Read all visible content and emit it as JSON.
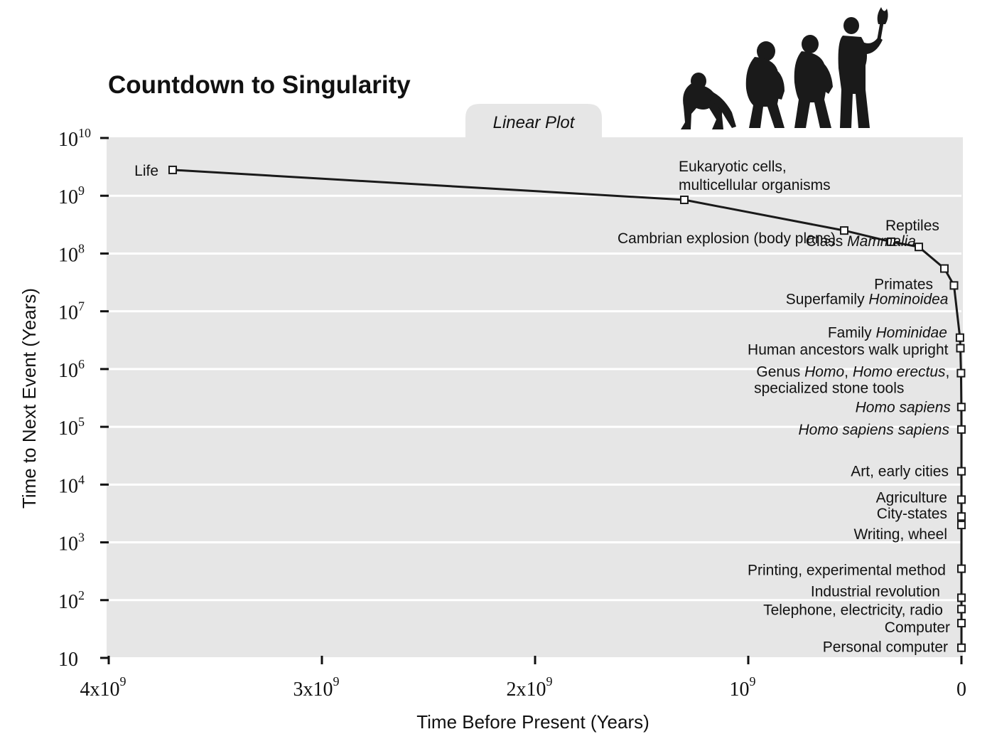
{
  "chart_data": {
    "type": "line",
    "title": "Countdown to Singularity",
    "subtitle": "Linear Plot",
    "xlabel": "Time Before Present (Years)",
    "ylabel": "Time to Next Event (Years)",
    "x_scale": "linear",
    "y_scale": "log",
    "xlim": [
      4000000000,
      0
    ],
    "ylim": [
      10,
      10000000000
    ],
    "grid": true,
    "x_ticks": [
      {
        "value": 4000000000,
        "base": "4x10",
        "exp": "9"
      },
      {
        "value": 3000000000,
        "base": "3x10",
        "exp": "9"
      },
      {
        "value": 2000000000,
        "base": "2x10",
        "exp": "9"
      },
      {
        "value": 1000000000,
        "base": "10",
        "exp": "9"
      },
      {
        "value": 0,
        "base": "0",
        "exp": ""
      }
    ],
    "y_ticks": [
      {
        "value": 10000000000,
        "base": "10",
        "exp": "10"
      },
      {
        "value": 1000000000,
        "base": "10",
        "exp": "9"
      },
      {
        "value": 100000000,
        "base": "10",
        "exp": "8"
      },
      {
        "value": 10000000,
        "base": "10",
        "exp": "7"
      },
      {
        "value": 1000000,
        "base": "10",
        "exp": "6"
      },
      {
        "value": 100000,
        "base": "10",
        "exp": "5"
      },
      {
        "value": 10000,
        "base": "10",
        "exp": "4"
      },
      {
        "value": 1000,
        "base": "10",
        "exp": "3"
      },
      {
        "value": 100,
        "base": "10",
        "exp": "2"
      },
      {
        "value": 10,
        "base": "10",
        "exp": ""
      }
    ],
    "events": [
      {
        "name": "Life",
        "x": 3700000000,
        "y": 2800000000
      },
      {
        "name": "Eukaryotic cells, multicellular organisms",
        "x": 1300000000,
        "y": 850000000
      },
      {
        "name": "Cambrian explosion (body plans)",
        "x": 550000000,
        "y": 250000000
      },
      {
        "name": "Reptiles",
        "x": 330000000,
        "y": 160000000
      },
      {
        "name": "Class Mammalia",
        "x": 200000000,
        "y": 130000000
      },
      {
        "name": "Primates",
        "x": 80000000,
        "y": 55000000
      },
      {
        "name": "Superfamily Hominoidea",
        "x": 35000000,
        "y": 28000000
      },
      {
        "name": "Family Hominidae",
        "x": 7000000,
        "y": 3500000
      },
      {
        "name": "Human ancestors walk upright",
        "x": 5000000,
        "y": 2300000
      },
      {
        "name": "Genus Homo, Homo erectus, specialized stone tools",
        "x": 2000000,
        "y": 850000
      },
      {
        "name": "Homo sapiens",
        "x": 400000,
        "y": 220000
      },
      {
        "name": "Homo sapiens sapiens",
        "x": 150000,
        "y": 90000
      },
      {
        "name": "Art, early cities",
        "x": 40000,
        "y": 17000
      },
      {
        "name": "Agriculture",
        "x": 10000,
        "y": 5500
      },
      {
        "name": "City-states",
        "x": 6000,
        "y": 2800
      },
      {
        "name": "Writing, wheel",
        "x": 4500,
        "y": 2000
      },
      {
        "name": "Printing, experimental method",
        "x": 550,
        "y": 350
      },
      {
        "name": "Industrial revolution",
        "x": 220,
        "y": 110
      },
      {
        "name": "Telephone, electricity, radio",
        "x": 120,
        "y": 70
      },
      {
        "name": "Computer",
        "x": 60,
        "y": 40
      },
      {
        "name": "Personal computer",
        "x": 30,
        "y": 15
      }
    ],
    "labels": [
      {
        "text": "Life",
        "event": 0
      },
      {
        "text": "Eukaryotic cells,",
        "event": 1
      },
      {
        "text": "multicellular organisms",
        "event": 1
      },
      {
        "text": "Cambrian explosion (body plans)",
        "event": 2
      },
      {
        "text": "Reptiles",
        "event": 3
      },
      {
        "parts": [
          {
            "t": "Class ",
            "i": false
          },
          {
            "t": "Mammalia",
            "i": true
          }
        ],
        "event": 4
      },
      {
        "text": "Primates",
        "event": 5
      },
      {
        "parts": [
          {
            "t": "Superfamily ",
            "i": false
          },
          {
            "t": "Hominoidea",
            "i": true
          }
        ],
        "event": 6
      },
      {
        "parts": [
          {
            "t": "Family ",
            "i": false
          },
          {
            "t": "Hominidae",
            "i": true
          }
        ],
        "event": 7
      },
      {
        "text": "Human ancestors walk upright",
        "event": 8
      },
      {
        "parts": [
          {
            "t": "Genus ",
            "i": false
          },
          {
            "t": "Homo",
            "i": true
          },
          {
            "t": ", ",
            "i": false
          },
          {
            "t": "Homo erectus",
            "i": true
          },
          {
            "t": ",",
            "i": false
          }
        ],
        "event": 9
      },
      {
        "text": "specialized stone tools",
        "event": 9
      },
      {
        "parts": [
          {
            "t": "Homo sapiens",
            "i": true
          }
        ],
        "event": 10
      },
      {
        "parts": [
          {
            "t": "Homo sapiens sapiens",
            "i": true
          }
        ],
        "event": 11
      },
      {
        "text": "Art, early cities",
        "event": 12
      },
      {
        "text": "Agriculture",
        "event": 13
      },
      {
        "text": "City-states",
        "event": 14
      },
      {
        "text": "Writing, wheel",
        "event": 15
      },
      {
        "text": "Printing, experimental method",
        "event": 16
      },
      {
        "text": "Industrial revolution",
        "event": 17
      },
      {
        "text": "Telephone, electricity, radio",
        "event": 18
      },
      {
        "text": "Computer",
        "event": 19
      },
      {
        "text": "Personal computer",
        "event": 20
      }
    ]
  },
  "illustration": {
    "name": "march-of-progress-silhouettes-icon",
    "figures": 4,
    "color": "#1a1a1a"
  },
  "colors": {
    "plot_background": "#e6e6e6",
    "gridline": "#ffffff",
    "curve": "#1a1a1a",
    "marker_fill": "#ffffff",
    "text": "#111111"
  }
}
